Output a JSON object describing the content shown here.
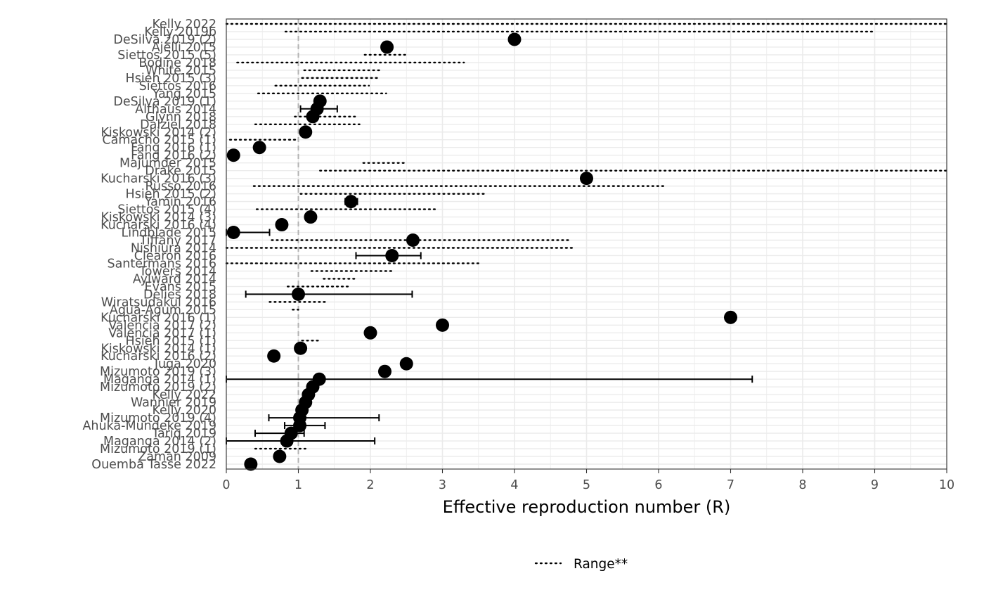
{
  "chart_data": {
    "type": "scatter",
    "xlabel": "Effective reproduction number (R)",
    "xlim": [
      0,
      10
    ],
    "xticks": [
      0,
      1,
      2,
      3,
      4,
      5,
      6,
      7,
      8,
      9,
      10
    ],
    "reference_line_x": 1,
    "grid": true,
    "legend_position": "bottom",
    "legend": [
      {
        "label": "Range**",
        "style": "dotted"
      }
    ],
    "studies": [
      {
        "label": "Kelly 2022",
        "range": [
          0.0,
          10.0
        ]
      },
      {
        "label": "Kelly 2019b",
        "range": [
          0.82,
          9.0
        ]
      },
      {
        "label": "DeSilva 2019 (2)",
        "point": 4.0
      },
      {
        "label": "Ajelli 2015",
        "point": 2.23
      },
      {
        "label": "Siettos 2015 (5)",
        "range": [
          1.92,
          2.5
        ]
      },
      {
        "label": "Bodine 2018",
        "range": [
          0.15,
          3.3
        ]
      },
      {
        "label": "White 2015",
        "range": [
          1.08,
          2.13
        ]
      },
      {
        "label": "Hsieh 2015 (3)",
        "range": [
          1.05,
          2.1
        ]
      },
      {
        "label": "Siettos 2016",
        "range": [
          0.68,
          1.98
        ]
      },
      {
        "label": "Yang 2015",
        "range": [
          0.44,
          2.22
        ]
      },
      {
        "label": "DeSilva 2019 (1)",
        "point": 1.3
      },
      {
        "label": "Althaus 2014",
        "point": 1.26,
        "ci": [
          1.03,
          1.54
        ]
      },
      {
        "label": "Glynn 2018",
        "point": 1.2,
        "range": [
          0.95,
          1.8
        ]
      },
      {
        "label": "Dalziel 2018",
        "range": [
          0.4,
          1.85
        ]
      },
      {
        "label": "Kiskowski 2014 (2)",
        "point": 1.1
      },
      {
        "label": "Camacho 2015 (1)",
        "range": [
          0.05,
          1.0
        ]
      },
      {
        "label": "Fang 2016 (1)",
        "point": 0.46
      },
      {
        "label": "Fang 2016 (2)",
        "point": 0.1
      },
      {
        "label": "Majumder 2015",
        "range": [
          1.9,
          2.5
        ]
      },
      {
        "label": "Drake 2015",
        "range": [
          1.3,
          10.0
        ]
      },
      {
        "label": "Kucharski 2016 (3)",
        "point": 5.0
      },
      {
        "label": "Russo 2016",
        "range": [
          0.38,
          6.1
        ]
      },
      {
        "label": "Hsieh 2015 (2)",
        "range": [
          1.03,
          3.58
        ]
      },
      {
        "label": "Yamin 2016",
        "point": 1.73,
        "ci": [
          1.65,
          1.82
        ]
      },
      {
        "label": "Siettos 2015 (4)",
        "range": [
          0.42,
          2.9
        ]
      },
      {
        "label": "Kiskowski 2014 (3)",
        "point": 1.17
      },
      {
        "label": "Kucharski 2016 (4)",
        "point": 0.77
      },
      {
        "label": "Lindblade 2015",
        "point": 0.1,
        "ci": [
          0.0,
          0.6
        ]
      },
      {
        "label": "Tiffany 2017",
        "point": 2.59,
        "range": [
          0.63,
          4.75
        ]
      },
      {
        "label": "Nishiura 2014",
        "range": [
          0.0,
          4.8
        ]
      },
      {
        "label": "Clearon 2016",
        "point": 2.3,
        "ci": [
          1.8,
          2.7
        ]
      },
      {
        "label": "Santermans 2016",
        "range": [
          0.0,
          3.5
        ]
      },
      {
        "label": "Towers 2014",
        "range": [
          1.18,
          2.3
        ]
      },
      {
        "label": "Aylward 2014",
        "range": [
          1.35,
          1.8
        ]
      },
      {
        "label": "Evans 2015",
        "range": [
          0.85,
          1.72
        ]
      },
      {
        "label": "Delies 2018",
        "point": 1.0,
        "ci": [
          0.27,
          2.58
        ]
      },
      {
        "label": "Wiratsudakul 2016",
        "range": [
          0.6,
          1.37
        ]
      },
      {
        "label": "Agua-Agum 2015",
        "range": [
          0.92,
          1.0
        ]
      },
      {
        "label": "Kucharski 2016 (1)",
        "point": 7.0
      },
      {
        "label": "Valencia 2017 (2)",
        "point": 3.0
      },
      {
        "label": "Valencia 2017 (1)",
        "point": 2.0
      },
      {
        "label": "Hsieh 2015 (1)",
        "range": [
          1.05,
          1.3
        ]
      },
      {
        "label": "Kiskowski 2014 (1)",
        "point": 1.03
      },
      {
        "label": "Kucharski 2016 (2)",
        "point": 0.66
      },
      {
        "label": "Juga 2020",
        "point": 2.5
      },
      {
        "label": "Mizumoto 2019 (3)",
        "point": 2.2
      },
      {
        "label": "Maganga 2014 (1)",
        "point": 1.29,
        "ci": [
          0.0,
          7.3
        ]
      },
      {
        "label": "Mizumoto 2019 (2)",
        "point": 1.2
      },
      {
        "label": "Kelly 2022",
        "point": 1.14
      },
      {
        "label": "Wannier 2019",
        "point": 1.1
      },
      {
        "label": "Kelly 2020",
        "point": 1.05
      },
      {
        "label": "Mizumoto 2019 (4)",
        "point": 1.02,
        "ci": [
          0.59,
          2.12
        ]
      },
      {
        "label": "Ahuka-Mundeke 2019",
        "point": 1.02,
        "ci": [
          0.81,
          1.37
        ]
      },
      {
        "label": "Tariq 2019",
        "point": 0.9,
        "ci": [
          0.4,
          1.08
        ]
      },
      {
        "label": "Maganga 2014 (2)",
        "point": 0.84,
        "ci": [
          0.0,
          2.06
        ]
      },
      {
        "label": "Mizumoto 2019 (1)",
        "range": [
          0.4,
          1.1
        ]
      },
      {
        "label": "Zaman 2009",
        "point": 0.74
      },
      {
        "label": "Ouemba Tasse 2022",
        "point": 0.34
      }
    ]
  }
}
